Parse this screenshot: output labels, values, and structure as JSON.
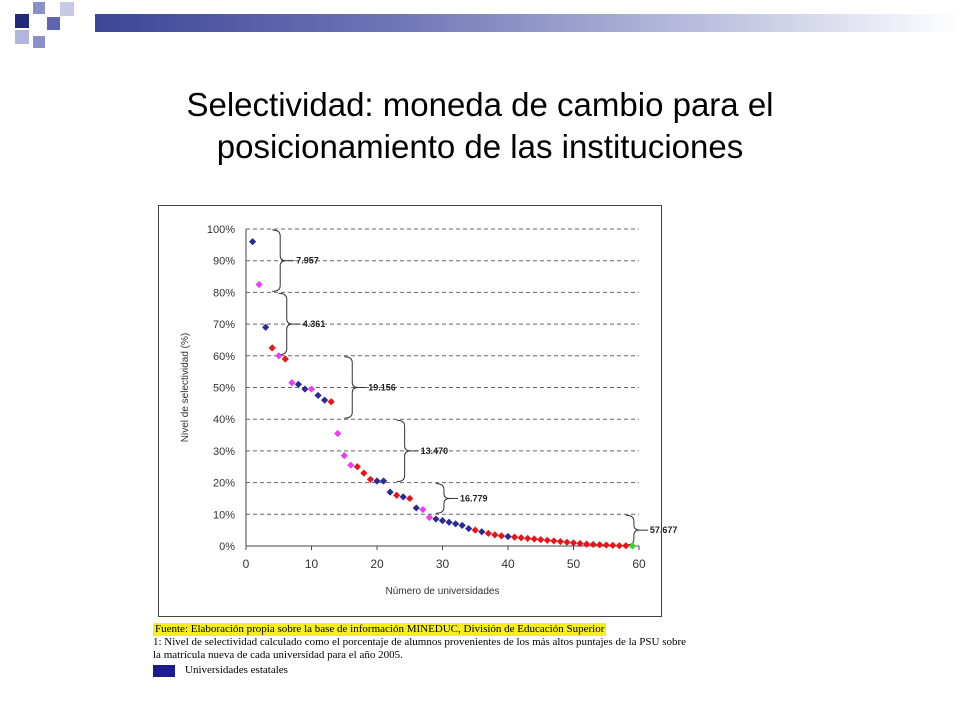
{
  "slide": {
    "title_line1": "Selectividad: moneda de cambio para el",
    "title_line2": "posicionamiento de las instituciones"
  },
  "notes": {
    "source": "Fuente: Elaboración propia sobre la base de información MINEDUC, División de Educación Superior",
    "footnote_line1": "1: Nivel de selectividad calculado como el porcentaje de alumnos provenientes de los más altos puntajes de la PSU sobre",
    "footnote_line2": "la matrícula nueva de cada universidad para el año 2005.",
    "legend_label": "Universidades estatales"
  },
  "colors": {
    "state": "#2b2b92",
    "red": "#e8141a",
    "magenta": "#f03cf0",
    "green": "#33d633",
    "accent_bar": "#3c4697",
    "highlight": "#f6ee1f"
  },
  "chart_data": {
    "type": "scatter",
    "xlabel": "Número de universidades",
    "ylabel": "Nivel de selectividad (%)",
    "xlim": [
      0,
      60
    ],
    "ylim": [
      0,
      100
    ],
    "x_ticks": [
      "0",
      "10",
      "20",
      "30",
      "40",
      "50",
      "60"
    ],
    "y_ticks": [
      "0%",
      "10%",
      "20%",
      "30%",
      "40%",
      "50%",
      "60%",
      "70%",
      "80%",
      "90%",
      "100%"
    ],
    "grid": "horizontal dashed",
    "points": [
      {
        "x": 1,
        "y": 96,
        "c": "state"
      },
      {
        "x": 2,
        "y": 82.5,
        "c": "magenta"
      },
      {
        "x": 3,
        "y": 69,
        "c": "state"
      },
      {
        "x": 4,
        "y": 62.5,
        "c": "red"
      },
      {
        "x": 5,
        "y": 60,
        "c": "magenta"
      },
      {
        "x": 6,
        "y": 59,
        "c": "red"
      },
      {
        "x": 7,
        "y": 51.5,
        "c": "magenta"
      },
      {
        "x": 8,
        "y": 51,
        "c": "state"
      },
      {
        "x": 9,
        "y": 49.5,
        "c": "state"
      },
      {
        "x": 10,
        "y": 49.5,
        "c": "magenta"
      },
      {
        "x": 11,
        "y": 47.5,
        "c": "state"
      },
      {
        "x": 12,
        "y": 46,
        "c": "state"
      },
      {
        "x": 13,
        "y": 45.5,
        "c": "red"
      },
      {
        "x": 14,
        "y": 35.5,
        "c": "magenta"
      },
      {
        "x": 15,
        "y": 28.5,
        "c": "magenta"
      },
      {
        "x": 16,
        "y": 25.5,
        "c": "magenta"
      },
      {
        "x": 17,
        "y": 25,
        "c": "red"
      },
      {
        "x": 18,
        "y": 23,
        "c": "red"
      },
      {
        "x": 19,
        "y": 21,
        "c": "red"
      },
      {
        "x": 20,
        "y": 20.5,
        "c": "state"
      },
      {
        "x": 21,
        "y": 20.5,
        "c": "state"
      },
      {
        "x": 22,
        "y": 17,
        "c": "state"
      },
      {
        "x": 23,
        "y": 16,
        "c": "red"
      },
      {
        "x": 24,
        "y": 15.5,
        "c": "state"
      },
      {
        "x": 25,
        "y": 15,
        "c": "red"
      },
      {
        "x": 26,
        "y": 12,
        "c": "state"
      },
      {
        "x": 27,
        "y": 11.5,
        "c": "magenta"
      },
      {
        "x": 28,
        "y": 9,
        "c": "magenta"
      },
      {
        "x": 29,
        "y": 8.5,
        "c": "state"
      },
      {
        "x": 30,
        "y": 8,
        "c": "state"
      },
      {
        "x": 31,
        "y": 7.5,
        "c": "state"
      },
      {
        "x": 32,
        "y": 7,
        "c": "state"
      },
      {
        "x": 33,
        "y": 6.5,
        "c": "state"
      },
      {
        "x": 34,
        "y": 5.5,
        "c": "state"
      },
      {
        "x": 35,
        "y": 5,
        "c": "red"
      },
      {
        "x": 36,
        "y": 4.5,
        "c": "state"
      },
      {
        "x": 37,
        "y": 4,
        "c": "red"
      },
      {
        "x": 38,
        "y": 3.5,
        "c": "red"
      },
      {
        "x": 39,
        "y": 3.2,
        "c": "red"
      },
      {
        "x": 40,
        "y": 3,
        "c": "state"
      },
      {
        "x": 41,
        "y": 2.8,
        "c": "red"
      },
      {
        "x": 42,
        "y": 2.6,
        "c": "red"
      },
      {
        "x": 43,
        "y": 2.4,
        "c": "red"
      },
      {
        "x": 44,
        "y": 2.2,
        "c": "red"
      },
      {
        "x": 45,
        "y": 2,
        "c": "red"
      },
      {
        "x": 46,
        "y": 1.8,
        "c": "red"
      },
      {
        "x": 47,
        "y": 1.6,
        "c": "red"
      },
      {
        "x": 48,
        "y": 1.4,
        "c": "red"
      },
      {
        "x": 49,
        "y": 1.2,
        "c": "red"
      },
      {
        "x": 50,
        "y": 1,
        "c": "red"
      },
      {
        "x": 51,
        "y": 0.8,
        "c": "red"
      },
      {
        "x": 52,
        "y": 0.6,
        "c": "red"
      },
      {
        "x": 53,
        "y": 0.5,
        "c": "red"
      },
      {
        "x": 54,
        "y": 0.4,
        "c": "red"
      },
      {
        "x": 55,
        "y": 0.3,
        "c": "red"
      },
      {
        "x": 56,
        "y": 0.2,
        "c": "red"
      },
      {
        "x": 57,
        "y": 0.1,
        "c": "red"
      },
      {
        "x": 58,
        "y": 0.1,
        "c": "red"
      },
      {
        "x": 59,
        "y": 0,
        "c": "green"
      }
    ],
    "brackets": [
      {
        "label": "7.957",
        "y_top": 100,
        "y_bottom": 80,
        "x": 4
      },
      {
        "label": "4.361",
        "y_top": 80,
        "y_bottom": 60,
        "x": 5
      },
      {
        "label": "19.156",
        "y_top": 60,
        "y_bottom": 40,
        "x": 15
      },
      {
        "label": "13.470",
        "y_top": 40,
        "y_bottom": 20,
        "x": 23
      },
      {
        "label": "16.779",
        "y_top": 20,
        "y_bottom": 10,
        "x": 29
      },
      {
        "label": "57.677",
        "y_top": 10,
        "y_bottom": 0,
        "x": 58
      }
    ]
  }
}
